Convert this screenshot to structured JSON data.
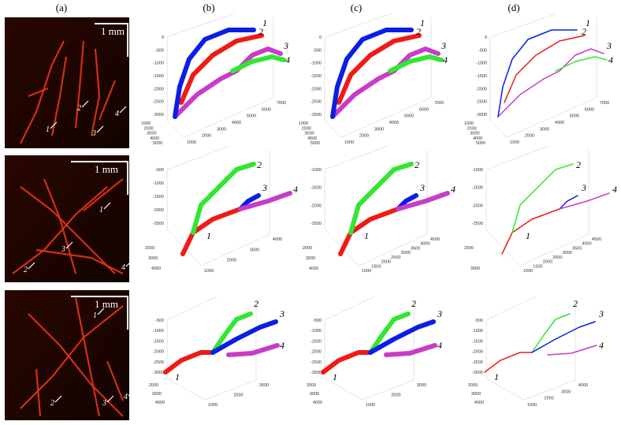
{
  "columns": [
    "(a)",
    "(b)",
    "(c)",
    "(d)"
  ],
  "images": [
    {
      "scale": "1 mm",
      "labels": [
        "1",
        "2",
        "3",
        "4"
      ]
    },
    {
      "scale": "1 mm",
      "labels": [
        "1",
        "2",
        "3",
        "4"
      ]
    },
    {
      "scale": "1 mm",
      "labels": [
        "1",
        "2",
        "3",
        "4"
      ]
    }
  ],
  "plots": [
    [
      {
        "z_ticks": [
          "0",
          "-500",
          "-1000",
          "-1500",
          "-2000",
          "-2500",
          "-3000"
        ],
        "y_ticks": [
          "1000",
          "2000",
          "3000",
          "4000",
          "5000"
        ],
        "x_ticks": [
          "1000",
          "2000",
          "3000",
          "4000",
          "5000",
          "6000",
          "7000"
        ],
        "curves": [
          "1",
          "2",
          "3",
          "4"
        ]
      },
      {
        "z_ticks": [
          "0",
          "-500",
          "-1000",
          "-1500",
          "-2000",
          "-2500",
          "-3000"
        ],
        "y_ticks": [
          "1000",
          "2000",
          "3000",
          "4000",
          "5000"
        ],
        "x_ticks": [
          "1000",
          "2000",
          "3000",
          "4000",
          "5000",
          "6000",
          "7000"
        ],
        "curves": [
          "1",
          "2",
          "3",
          "4"
        ]
      },
      {
        "z_ticks": [
          "0",
          "-500",
          "-1000",
          "-1500",
          "-2000",
          "-2500",
          "-3000"
        ],
        "y_ticks": [
          "1000",
          "2000",
          "3000",
          "4000",
          "5000"
        ],
        "x_ticks": [
          "1000",
          "2000",
          "3000",
          "4000",
          "5000",
          "6000",
          "7000"
        ],
        "curves": [
          "1",
          "2",
          "3",
          "4"
        ]
      }
    ],
    [
      {
        "z_ticks": [
          "-500",
          "-1000",
          "-1500",
          "-2000",
          "-2500"
        ],
        "y_ticks": [
          "2000",
          "3000",
          "4000"
        ],
        "x_ticks": [
          "1000",
          "2000",
          "3000",
          "4000"
        ],
        "curves": [
          "1",
          "2",
          "3",
          "4"
        ]
      },
      {
        "z_ticks": [
          "-1000",
          "-1500",
          "-2000",
          "-2500"
        ],
        "y_ticks": [
          "2000",
          "3000",
          "4000"
        ],
        "x_ticks": [
          "1000",
          "1500",
          "2000",
          "2500",
          "3000",
          "3500",
          "4000",
          "4500"
        ],
        "curves": [
          "1",
          "2",
          "3",
          "4"
        ]
      },
      {
        "z_ticks": [
          "-1000",
          "-1500",
          "-2000",
          "-2500"
        ],
        "y_ticks": [
          "2000",
          "3000"
        ],
        "x_ticks": [
          "1000",
          "1500",
          "2000",
          "2500",
          "3000",
          "3500",
          "4000",
          "4500"
        ],
        "curves": [
          "1",
          "2",
          "3",
          "4"
        ]
      }
    ],
    [
      {
        "z_ticks": [
          "-500",
          "-1000",
          "-1500",
          "-2000",
          "-2500",
          "-3000"
        ],
        "y_ticks": [
          "2000",
          "3000",
          "4000"
        ],
        "x_ticks": [
          "1000",
          "2000",
          "3000"
        ],
        "curves": [
          "1",
          "2",
          "3",
          "4"
        ]
      },
      {
        "z_ticks": [
          "-500",
          "-1000",
          "-1500",
          "-2000",
          "-2500",
          "-3000"
        ],
        "y_ticks": [
          "2000",
          "3000",
          "4000"
        ],
        "x_ticks": [
          "1000",
          "2000",
          "3000"
        ],
        "curves": [
          "1",
          "2",
          "3",
          "4"
        ]
      },
      {
        "z_ticks": [
          "-500",
          "-1000",
          "-1500",
          "-2000",
          "-2500",
          "-3000"
        ],
        "y_ticks": [
          "2000",
          "3000",
          "4000"
        ],
        "x_ticks": [
          "1000",
          "2000",
          "3000",
          "4000"
        ],
        "curves": [
          "1",
          "2",
          "3",
          "4"
        ]
      }
    ]
  ]
}
